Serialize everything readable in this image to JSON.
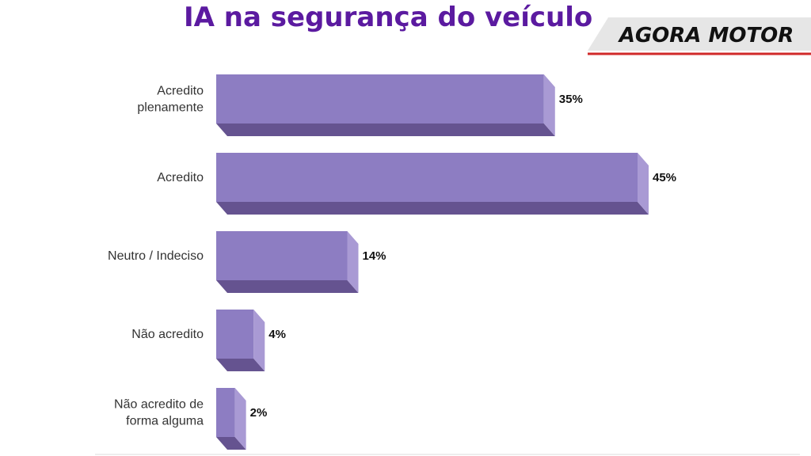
{
  "brand": {
    "name": "AGORA MOTOR",
    "accent_color": "#d12a2a",
    "background_color": "#e6e6e6"
  },
  "chart_data": {
    "type": "bar",
    "orientation": "horizontal",
    "title": "IA na segurança do veículo",
    "categories": [
      "Acredito plenamente",
      "Acredito",
      "Neutro / Indeciso",
      "Não acredito",
      "Não acredito de forma alguma"
    ],
    "values": [
      35,
      45,
      14,
      4,
      2
    ],
    "data_labels": [
      "35%",
      "45%",
      "14%",
      "4%",
      "2%"
    ],
    "unit": "%",
    "xlim": [
      0,
      45
    ],
    "grid": false,
    "style": "3d",
    "colors": {
      "front": "#8d7dc2",
      "side": "#a99ad4",
      "bottom": "#655390",
      "title": "#5b1aa0"
    }
  }
}
